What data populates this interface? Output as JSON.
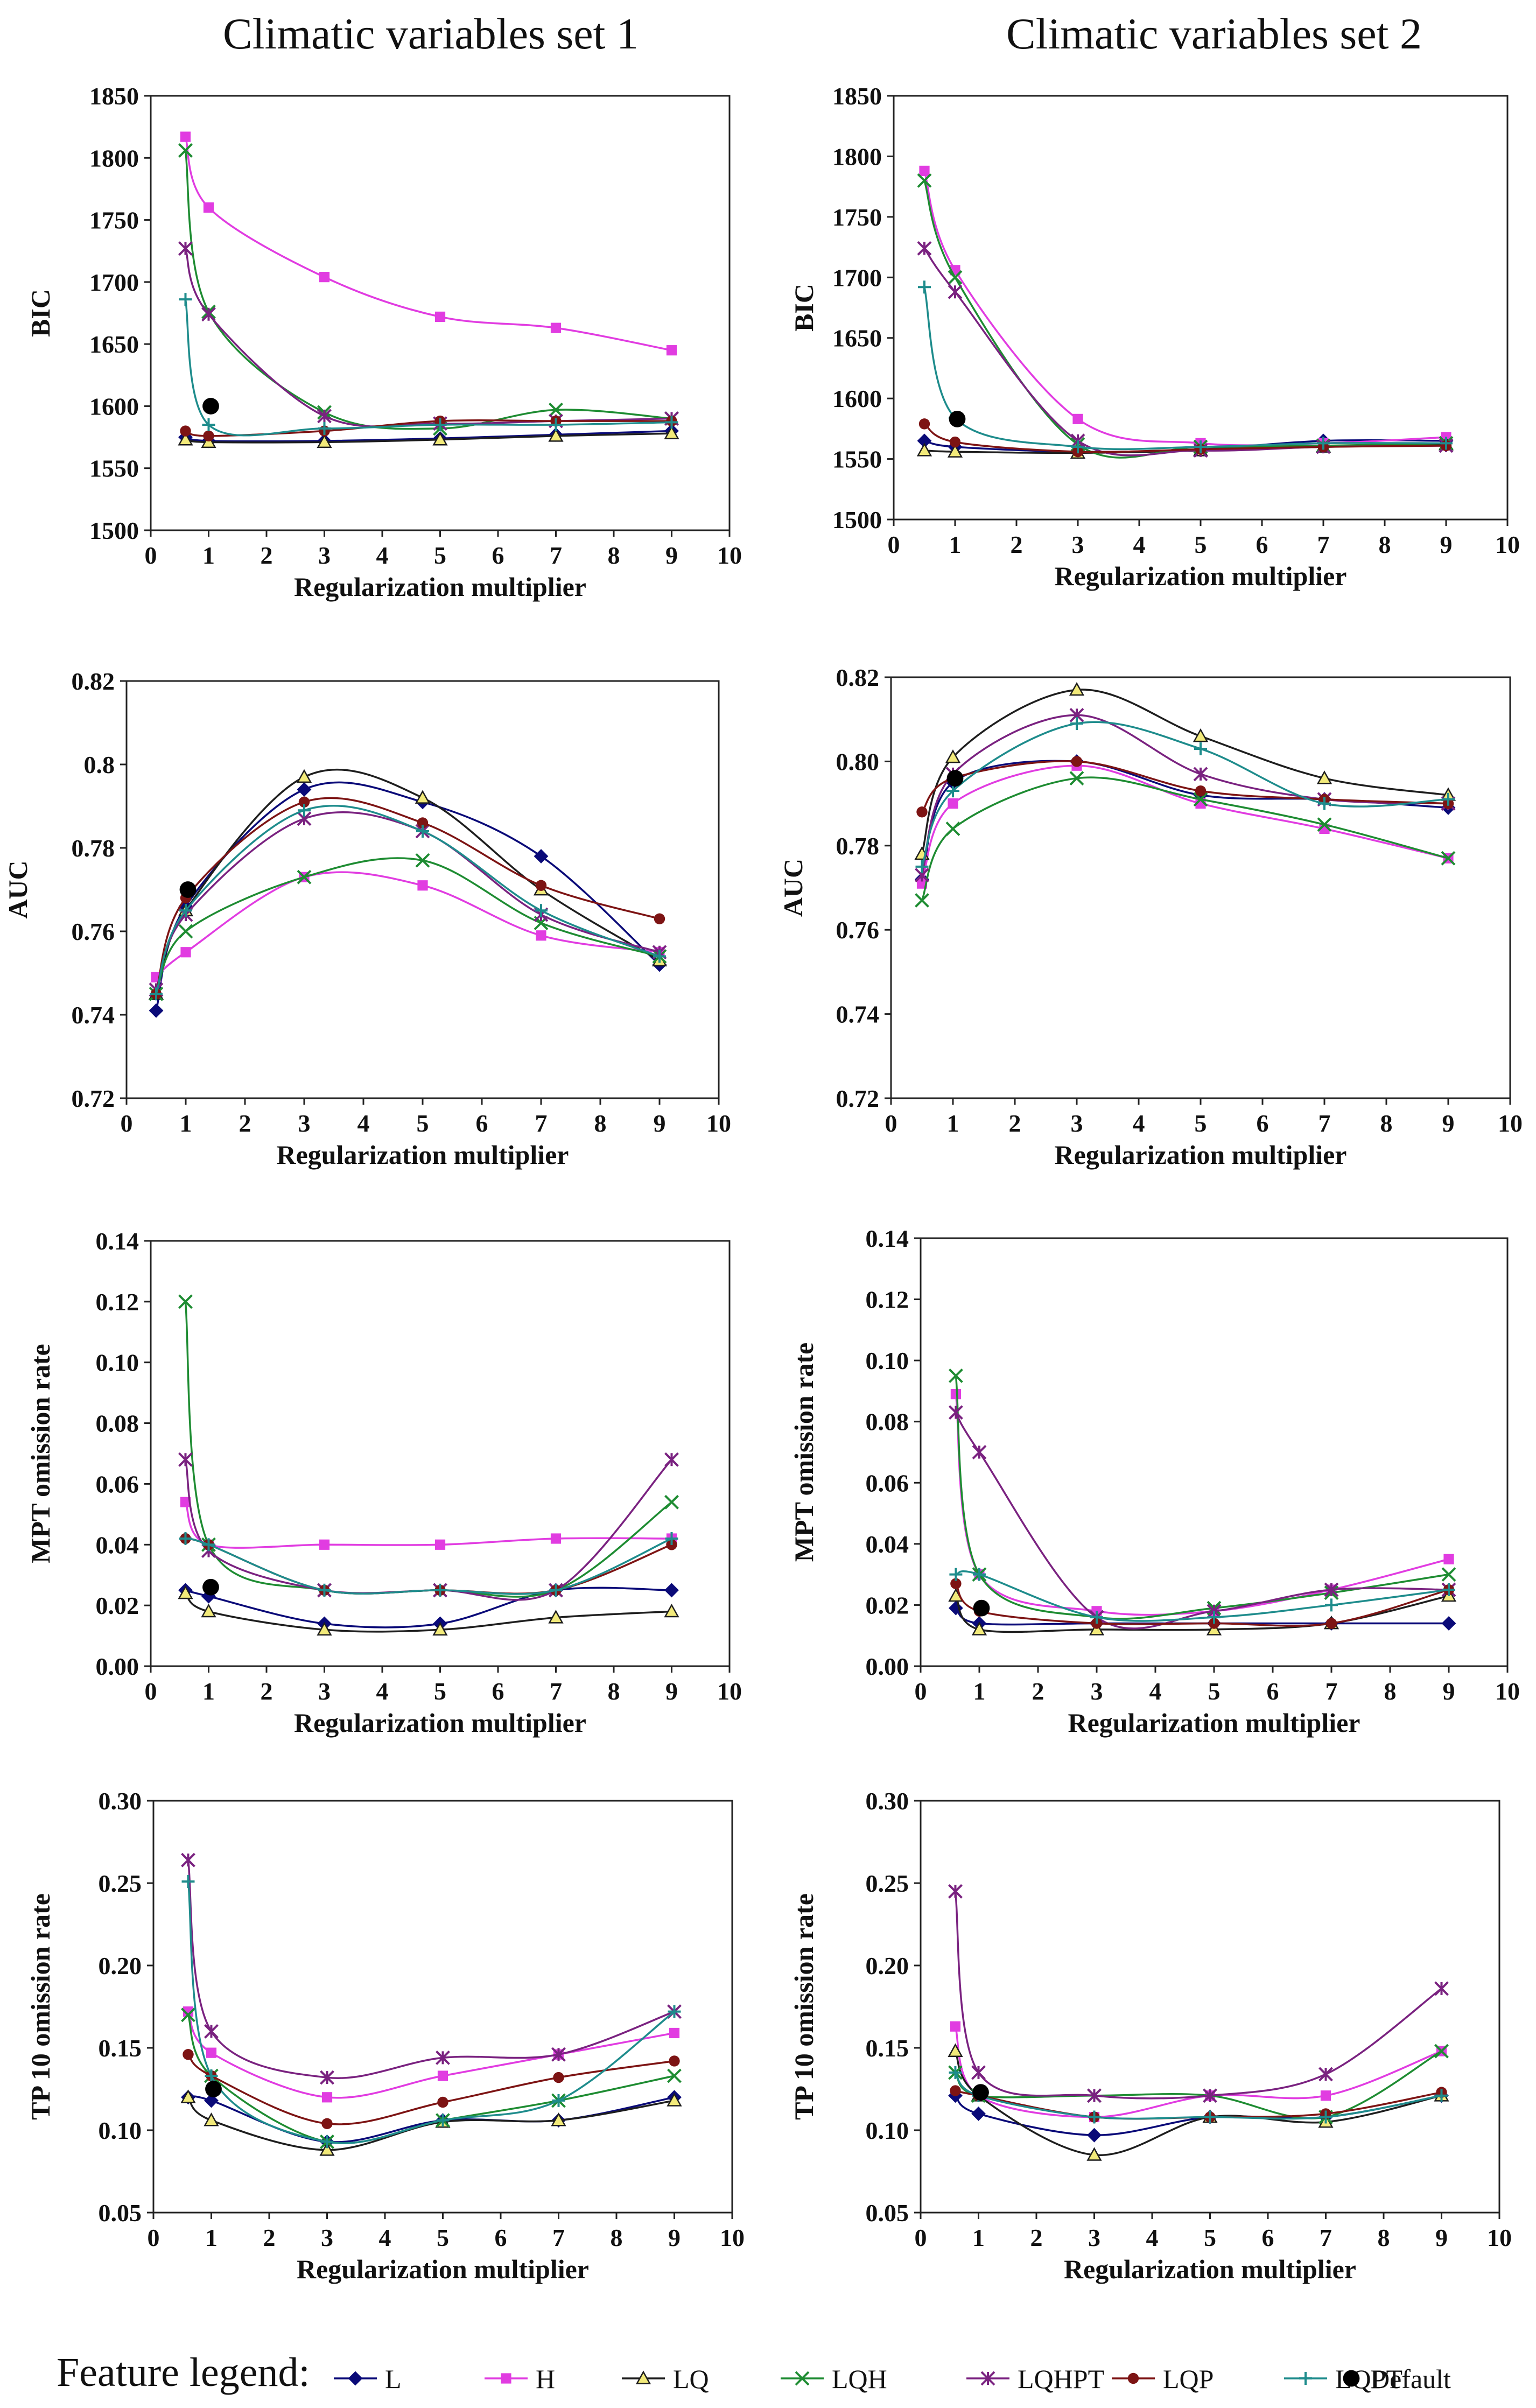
{
  "column_titles": [
    "Climatic variables set 1",
    "Climatic variables set 2"
  ],
  "legend": {
    "title": "Feature legend:",
    "items": [
      {
        "key": "L",
        "label": "L",
        "color": "#0a0a78",
        "marker": "diamond"
      },
      {
        "key": "H",
        "label": "H",
        "color": "#e13ce1",
        "marker": "square"
      },
      {
        "key": "LQ",
        "label": "LQ",
        "color": "#1e1e1e",
        "marker": "triangle",
        "fill": "#f2ea7a"
      },
      {
        "key": "LQH",
        "label": "LQH",
        "color": "#1e8c32",
        "marker": "x"
      },
      {
        "key": "LQHPT",
        "label": "LQHPT",
        "color": "#7a2280",
        "marker": "star"
      },
      {
        "key": "LQP",
        "label": "LQP",
        "color": "#7d1414",
        "marker": "circle"
      },
      {
        "key": "LQPT",
        "label": "LQPT",
        "color": "#1e8c8c",
        "marker": "plus"
      },
      {
        "key": "Default",
        "label": "Default",
        "color": "#000000",
        "marker": "dot"
      }
    ]
  },
  "chart_data": [
    {
      "id": "bic-set1",
      "type": "line",
      "title": "",
      "xlabel": "Regularization multiplier",
      "ylabel": "BIC",
      "xlim": [
        0,
        10
      ],
      "ylim": [
        1500,
        1850
      ],
      "xticks": [
        "0",
        "1",
        "2",
        "3",
        "4",
        "5",
        "6",
        "7",
        "8",
        "9",
        "10"
      ],
      "yticks": [
        "1500",
        "1550",
        "1600",
        "1650",
        "1700",
        "1750",
        "1800",
        "1850"
      ],
      "x": [
        0.6,
        1,
        3,
        5,
        7,
        9
      ],
      "series": [
        {
          "name": "L",
          "values": [
            1575,
            1572,
            1572,
            1574,
            1577,
            1580
          ]
        },
        {
          "name": "H",
          "values": [
            1817,
            1760,
            1704,
            1672,
            1663,
            1645
          ]
        },
        {
          "name": "LQ",
          "values": [
            1573,
            1571,
            1571,
            1573,
            1576,
            1578
          ]
        },
        {
          "name": "LQH",
          "values": [
            1806,
            1676,
            1595,
            1582,
            1597,
            1590
          ]
        },
        {
          "name": "LQHPT",
          "values": [
            1727,
            1674,
            1592,
            1586,
            1588,
            1590
          ]
        },
        {
          "name": "LQP",
          "values": [
            1580,
            1576,
            1580,
            1588,
            1588,
            1588
          ]
        },
        {
          "name": "LQPT",
          "values": [
            1686,
            1585,
            1582,
            1585,
            1585,
            1587
          ]
        }
      ],
      "default_point": {
        "x": 1,
        "y": 1600
      }
    },
    {
      "id": "bic-set2",
      "type": "line",
      "title": "",
      "xlabel": "Regularization multiplier",
      "ylabel": "BIC",
      "xlim": [
        0,
        10
      ],
      "ylim": [
        1500,
        1850
      ],
      "xticks": [
        "0",
        "1",
        "2",
        "3",
        "4",
        "5",
        "6",
        "7",
        "8",
        "9",
        "10"
      ],
      "yticks": [
        "1500",
        "1550",
        "1600",
        "1650",
        "1700",
        "1750",
        "1800",
        "1850"
      ],
      "x": [
        0.5,
        1,
        3,
        5,
        7,
        9
      ],
      "series": [
        {
          "name": "L",
          "values": [
            1565,
            1560,
            1556,
            1558,
            1565,
            1565
          ]
        },
        {
          "name": "H",
          "values": [
            1788,
            1706,
            1583,
            1563,
            1563,
            1568
          ]
        },
        {
          "name": "LQ",
          "values": [
            1557,
            1556,
            1555,
            1557,
            1560,
            1562
          ]
        },
        {
          "name": "LQH",
          "values": [
            1780,
            1700,
            1562,
            1560,
            1561,
            1563
          ]
        },
        {
          "name": "LQHPT",
          "values": [
            1724,
            1688,
            1565,
            1557,
            1560,
            1561
          ]
        },
        {
          "name": "LQP",
          "values": [
            1579,
            1564,
            1556,
            1558,
            1560,
            1561
          ]
        },
        {
          "name": "LQPT",
          "values": [
            1692,
            1584,
            1560,
            1560,
            1563,
            1563
          ]
        }
      ],
      "default_point": {
        "x": 1,
        "y": 1583
      }
    },
    {
      "id": "auc-set1",
      "type": "line",
      "title": "",
      "xlabel": "Regularization multiplier",
      "ylabel": "AUC",
      "xlim": [
        0,
        10
      ],
      "ylim": [
        0.72,
        0.82
      ],
      "xticks": [
        "0",
        "1",
        "2",
        "3",
        "4",
        "5",
        "6",
        "7",
        "8",
        "9",
        "10"
      ],
      "yticks": [
        "0.72",
        "0.74",
        "0.76",
        "0.78",
        "0.8",
        "0.82"
      ],
      "x": [
        0.5,
        1,
        3,
        5,
        7,
        9
      ],
      "series": [
        {
          "name": "L",
          "values": [
            0.741,
            0.766,
            0.794,
            0.791,
            0.778,
            0.752
          ]
        },
        {
          "name": "H",
          "values": [
            0.749,
            0.755,
            0.773,
            0.771,
            0.759,
            0.755
          ]
        },
        {
          "name": "LQ",
          "values": [
            0.745,
            0.765,
            0.797,
            0.792,
            0.77,
            0.753
          ]
        },
        {
          "name": "LQH",
          "values": [
            0.745,
            0.76,
            0.773,
            0.777,
            0.762,
            0.754
          ]
        },
        {
          "name": "LQHPT",
          "values": [
            0.746,
            0.764,
            0.787,
            0.784,
            0.764,
            0.755
          ]
        },
        {
          "name": "LQP",
          "values": [
            0.745,
            0.768,
            0.791,
            0.786,
            0.771,
            0.763
          ]
        },
        {
          "name": "LQPT",
          "values": [
            0.745,
            0.765,
            0.789,
            0.784,
            0.765,
            0.754
          ]
        }
      ],
      "default_point": {
        "x": 1,
        "y": 0.77
      }
    },
    {
      "id": "auc-set2",
      "type": "line",
      "title": "",
      "xlabel": "Regularization multiplier",
      "ylabel": "AUC",
      "xlim": [
        0,
        10
      ],
      "ylim": [
        0.72,
        0.82
      ],
      "xticks": [
        "0",
        "1",
        "2",
        "3",
        "4",
        "5",
        "6",
        "7",
        "8",
        "9",
        "10"
      ],
      "yticks": [
        "0.72",
        "0.74",
        "0.76",
        "0.78",
        "0.80",
        "0.82"
      ],
      "x": [
        0.5,
        1,
        3,
        5,
        7,
        9
      ],
      "series": [
        {
          "name": "L",
          "values": [
            0.772,
            0.795,
            0.8,
            0.792,
            0.791,
            0.789
          ]
        },
        {
          "name": "H",
          "values": [
            0.771,
            0.79,
            0.799,
            0.79,
            0.784,
            0.777
          ]
        },
        {
          "name": "LQ",
          "values": [
            0.778,
            0.801,
            0.817,
            0.806,
            0.796,
            0.792
          ]
        },
        {
          "name": "LQH",
          "values": [
            0.767,
            0.784,
            0.796,
            0.791,
            0.785,
            0.777
          ]
        },
        {
          "name": "LQHPT",
          "values": [
            0.773,
            0.797,
            0.811,
            0.797,
            0.791,
            0.79
          ]
        },
        {
          "name": "LQP",
          "values": [
            0.788,
            0.796,
            0.8,
            0.793,
            0.791,
            0.79
          ]
        },
        {
          "name": "LQPT",
          "values": [
            0.775,
            0.793,
            0.809,
            0.803,
            0.79,
            0.791
          ]
        }
      ],
      "default_point": {
        "x": 1,
        "y": 0.796
      }
    },
    {
      "id": "mpt-set1",
      "type": "line",
      "title": "",
      "xlabel": "Regularization multiplier",
      "ylabel": "MPT omission rate",
      "xlim": [
        0,
        10
      ],
      "ylim": [
        0,
        0.14
      ],
      "xticks": [
        "0",
        "1",
        "2",
        "3",
        "4",
        "5",
        "6",
        "7",
        "8",
        "9",
        "10"
      ],
      "yticks": [
        "0.00",
        "0.02",
        "0.04",
        "0.06",
        "0.08",
        "0.10",
        "0.12",
        "0.14"
      ],
      "x": [
        0.6,
        1,
        3,
        5,
        7,
        9
      ],
      "series": [
        {
          "name": "L",
          "values": [
            0.025,
            0.023,
            0.014,
            0.014,
            0.025,
            0.025
          ]
        },
        {
          "name": "H",
          "values": [
            0.054,
            0.04,
            0.04,
            0.04,
            0.042,
            0.042
          ]
        },
        {
          "name": "LQ",
          "values": [
            0.024,
            0.018,
            0.012,
            0.012,
            0.016,
            0.018
          ]
        },
        {
          "name": "LQH",
          "values": [
            0.12,
            0.04,
            0.025,
            0.025,
            0.025,
            0.054
          ]
        },
        {
          "name": "LQHPT",
          "values": [
            0.068,
            0.038,
            0.025,
            0.025,
            0.025,
            0.068
          ]
        },
        {
          "name": "LQP",
          "values": [
            0.042,
            0.04,
            0.025,
            0.025,
            0.025,
            0.04
          ]
        },
        {
          "name": "LQPT",
          "values": [
            0.042,
            0.04,
            0.025,
            0.025,
            0.025,
            0.042
          ]
        }
      ],
      "default_point": {
        "x": 1,
        "y": 0.026
      }
    },
    {
      "id": "mpt-set2",
      "type": "line",
      "title": "",
      "xlabel": "Regularization multiplier",
      "ylabel": "MPT omission rate",
      "xlim": [
        0,
        10
      ],
      "ylim": [
        0,
        0.14
      ],
      "xticks": [
        "0",
        "1",
        "2",
        "3",
        "4",
        "5",
        "6",
        "7",
        "8",
        "9",
        "10"
      ],
      "yticks": [
        "0.00",
        "0.02",
        "0.04",
        "0.06",
        "0.08",
        "0.10",
        "0.12",
        "0.14"
      ],
      "x": [
        0.6,
        1,
        3,
        5,
        7,
        9
      ],
      "series": [
        {
          "name": "L",
          "values": [
            0.019,
            0.014,
            0.014,
            0.014,
            0.014,
            0.014
          ]
        },
        {
          "name": "H",
          "values": [
            0.089,
            0.03,
            0.018,
            0.018,
            0.025,
            0.035
          ]
        },
        {
          "name": "LQ",
          "values": [
            0.023,
            0.012,
            0.012,
            0.012,
            0.014,
            0.023
          ]
        },
        {
          "name": "LQH",
          "values": [
            0.095,
            0.03,
            0.016,
            0.019,
            0.024,
            0.03
          ]
        },
        {
          "name": "LQHPT",
          "values": [
            0.083,
            0.07,
            0.016,
            0.018,
            0.025,
            0.025
          ]
        },
        {
          "name": "LQP",
          "values": [
            0.027,
            0.018,
            0.014,
            0.014,
            0.014,
            0.025
          ]
        },
        {
          "name": "LQPT",
          "values": [
            0.03,
            0.03,
            0.016,
            0.016,
            0.02,
            0.025
          ]
        }
      ],
      "default_point": {
        "x": 1,
        "y": 0.019
      }
    },
    {
      "id": "tp10-set1",
      "type": "line",
      "title": "",
      "xlabel": "Regularization multiplier",
      "ylabel": "TP 10 omission rate",
      "xlim": [
        0,
        10
      ],
      "ylim": [
        0.05,
        0.3
      ],
      "xticks": [
        "0",
        "1",
        "2",
        "3",
        "4",
        "5",
        "6",
        "7",
        "8",
        "9",
        "10"
      ],
      "yticks": [
        "0.05",
        "0.10",
        "0.15",
        "0.20",
        "0.25",
        "0.30"
      ],
      "x": [
        0.6,
        1,
        3,
        5,
        7,
        9
      ],
      "series": [
        {
          "name": "L",
          "values": [
            0.12,
            0.118,
            0.093,
            0.106,
            0.106,
            0.12
          ]
        },
        {
          "name": "H",
          "values": [
            0.172,
            0.147,
            0.12,
            0.133,
            0.146,
            0.159
          ]
        },
        {
          "name": "LQ",
          "values": [
            0.12,
            0.106,
            0.088,
            0.105,
            0.106,
            0.118
          ]
        },
        {
          "name": "LQH",
          "values": [
            0.17,
            0.133,
            0.093,
            0.106,
            0.118,
            0.133
          ]
        },
        {
          "name": "LQHPT",
          "values": [
            0.264,
            0.16,
            0.132,
            0.144,
            0.146,
            0.172
          ]
        },
        {
          "name": "LQP",
          "values": [
            0.146,
            0.133,
            0.104,
            0.117,
            0.132,
            0.142
          ]
        },
        {
          "name": "LQPT",
          "values": [
            0.251,
            0.133,
            0.093,
            0.106,
            0.118,
            0.172
          ]
        }
      ],
      "default_point": {
        "x": 1,
        "y": 0.125
      }
    },
    {
      "id": "tp10-set2",
      "type": "line",
      "title": "",
      "xlabel": "Regularization multiplier",
      "ylabel": "TP 10 omission rate",
      "xlim": [
        0,
        10
      ],
      "ylim": [
        0.05,
        0.3
      ],
      "xticks": [
        "0",
        "1",
        "2",
        "3",
        "4",
        "5",
        "6",
        "7",
        "8",
        "9",
        "10"
      ],
      "yticks": [
        "0.05",
        "0.10",
        "0.15",
        "0.20",
        "0.25",
        "0.30"
      ],
      "x": [
        0.6,
        1,
        3,
        5,
        7,
        9
      ],
      "series": [
        {
          "name": "L",
          "values": [
            0.121,
            0.11,
            0.097,
            0.108,
            0.108,
            0.121
          ]
        },
        {
          "name": "H",
          "values": [
            0.163,
            0.121,
            0.108,
            0.121,
            0.121,
            0.148
          ]
        },
        {
          "name": "LQ",
          "values": [
            0.148,
            0.121,
            0.085,
            0.108,
            0.105,
            0.121
          ]
        },
        {
          "name": "LQH",
          "values": [
            0.135,
            0.121,
            0.121,
            0.121,
            0.108,
            0.148
          ]
        },
        {
          "name": "LQHPT",
          "values": [
            0.245,
            0.135,
            0.121,
            0.121,
            0.134,
            0.186
          ]
        },
        {
          "name": "LQP",
          "values": [
            0.124,
            0.121,
            0.108,
            0.108,
            0.11,
            0.123
          ]
        },
        {
          "name": "LQPT",
          "values": [
            0.135,
            0.121,
            0.108,
            0.108,
            0.108,
            0.121
          ]
        }
      ],
      "default_point": {
        "x": 1,
        "y": 0.123
      }
    }
  ]
}
